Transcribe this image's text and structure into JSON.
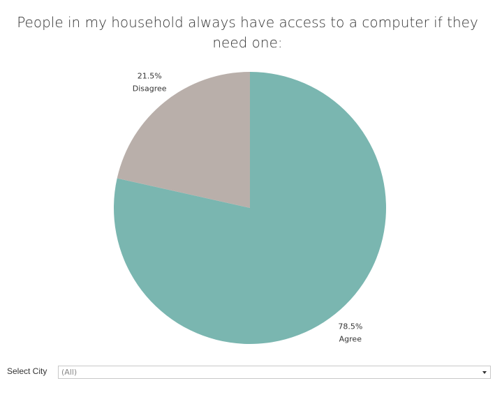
{
  "chart_data": {
    "type": "pie",
    "title": "People in my household always have access to a computer if they need one:",
    "categories": [
      "Agree",
      "Disagree"
    ],
    "values": [
      78.5,
      21.5
    ],
    "value_labels": [
      "78.5%",
      "21.5%"
    ],
    "colors": [
      "#7ab6b0",
      "#b9afaa"
    ]
  },
  "filter": {
    "label": "Select City",
    "value": "(All)"
  }
}
